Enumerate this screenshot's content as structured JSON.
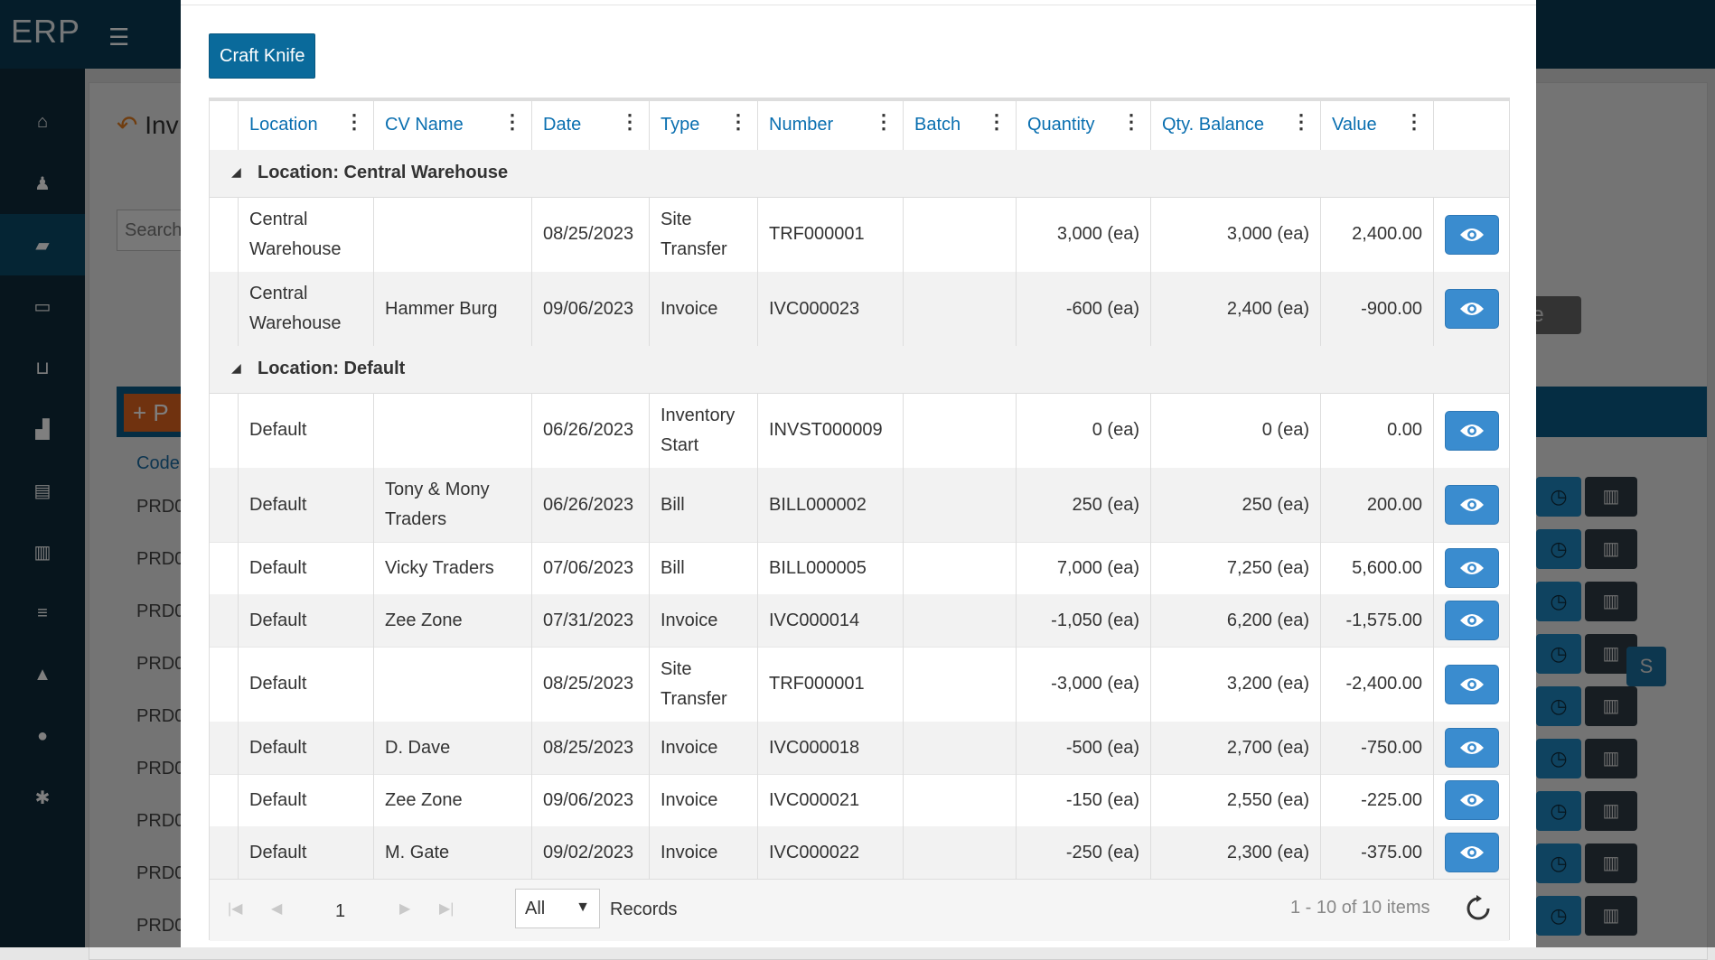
{
  "app": {
    "brand": "ERP"
  },
  "background": {
    "title": "Inv",
    "search_placeholder": "Search",
    "add_button": "P",
    "code_header": "Code",
    "prd_rows": [
      "PRD0",
      "PRD0",
      "PRD0",
      "PRD0",
      "PRD0",
      "PRD0",
      "PRD0",
      "PRD0",
      "PRD0"
    ],
    "right_button": "de",
    "s_button": "S"
  },
  "modal": {
    "product_button": "Craft Knife",
    "columns": [
      "Location",
      "CV Name",
      "Date",
      "Type",
      "Number",
      "Batch",
      "Quantity",
      "Qty. Balance",
      "Value"
    ],
    "groups": [
      {
        "label": "Location: Central Warehouse",
        "rows": [
          {
            "location": "Central Warehouse",
            "cv_name": "",
            "date": "08/25/2023",
            "type": "Site Transfer",
            "number": "TRF000001",
            "batch": "",
            "quantity": "3,000 (ea)",
            "qty_balance": "3,000 (ea)",
            "value": "2,400.00"
          },
          {
            "location": "Central Warehouse",
            "cv_name": "Hammer Burg",
            "date": "09/06/2023",
            "type": "Invoice",
            "number": "IVC000023",
            "batch": "",
            "quantity": "-600 (ea)",
            "qty_balance": "2,400 (ea)",
            "value": "-900.00"
          }
        ]
      },
      {
        "label": "Location: Default",
        "rows": [
          {
            "location": "Default",
            "cv_name": "",
            "date": "06/26/2023",
            "type": "Inventory Start",
            "number": "INVST000009",
            "batch": "",
            "quantity": "0 (ea)",
            "qty_balance": "0 (ea)",
            "value": "0.00"
          },
          {
            "location": "Default",
            "cv_name": "Tony & Mony Traders",
            "date": "06/26/2023",
            "type": "Bill",
            "number": "BILL000002",
            "batch": "",
            "quantity": "250 (ea)",
            "qty_balance": "250 (ea)",
            "value": "200.00"
          },
          {
            "location": "Default",
            "cv_name": "Vicky Traders",
            "date": "07/06/2023",
            "type": "Bill",
            "number": "BILL000005",
            "batch": "",
            "quantity": "7,000 (ea)",
            "qty_balance": "7,250 (ea)",
            "value": "5,600.00"
          },
          {
            "location": "Default",
            "cv_name": "Zee Zone",
            "date": "07/31/2023",
            "type": "Invoice",
            "number": "IVC000014",
            "batch": "",
            "quantity": "-1,050 (ea)",
            "qty_balance": "6,200 (ea)",
            "value": "-1,575.00"
          },
          {
            "location": "Default",
            "cv_name": "",
            "date": "08/25/2023",
            "type": "Site Transfer",
            "number": "TRF000001",
            "batch": "",
            "quantity": "-3,000 (ea)",
            "qty_balance": "3,200 (ea)",
            "value": "-2,400.00"
          },
          {
            "location": "Default",
            "cv_name": "D. Dave",
            "date": "08/25/2023",
            "type": "Invoice",
            "number": "IVC000018",
            "batch": "",
            "quantity": "-500 (ea)",
            "qty_balance": "2,700 (ea)",
            "value": "-750.00"
          },
          {
            "location": "Default",
            "cv_name": "Zee Zone",
            "date": "09/06/2023",
            "type": "Invoice",
            "number": "IVC000021",
            "batch": "",
            "quantity": "-150 (ea)",
            "qty_balance": "2,550 (ea)",
            "value": "-225.00"
          },
          {
            "location": "Default",
            "cv_name": "M. Gate",
            "date": "09/02/2023",
            "type": "Invoice",
            "number": "IVC000022",
            "batch": "",
            "quantity": "-250 (ea)",
            "qty_balance": "2,300 (ea)",
            "value": "-375.00"
          }
        ]
      }
    ],
    "pager": {
      "page": "1",
      "page_size": "All",
      "records_label": "Records",
      "info": "1 - 10 of 10 items"
    }
  },
  "colors": {
    "primary": "#0a6a9b",
    "eye_button": "#3a8ccf",
    "topbar": "#0b3a55",
    "sidebar": "#0f2a3a"
  }
}
